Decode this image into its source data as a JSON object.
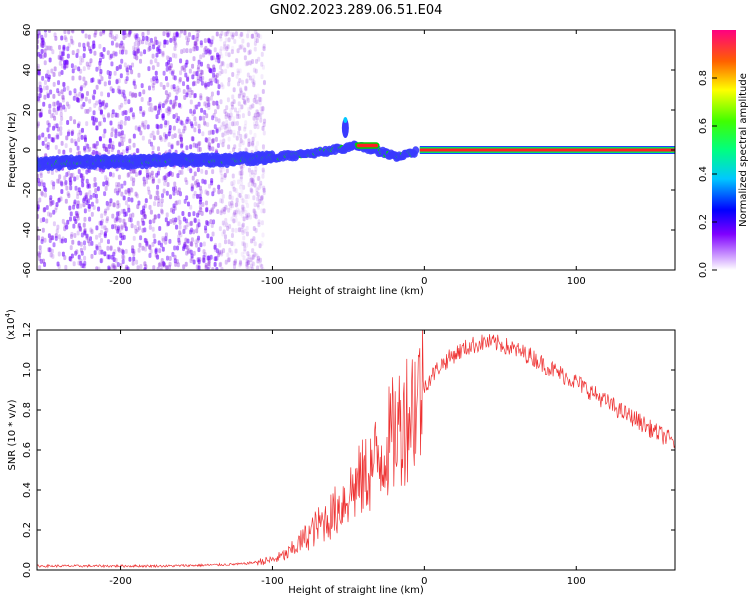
{
  "title": "GN02.2023.289.06.51.E04",
  "chart_data": [
    {
      "type": "heatmap",
      "xlabel": "Height of straight line (km)",
      "ylabel": "Frequency (Hz)",
      "xlim": [
        -255,
        165
      ],
      "ylim": [
        -60,
        60
      ],
      "xticks": [
        -200,
        -100,
        0,
        100
      ],
      "yticks": [
        -60,
        -40,
        -20,
        0,
        20,
        40,
        60
      ],
      "ridge": {
        "x": [
          -250,
          -230,
          -210,
          -190,
          -170,
          -150,
          -130,
          -110,
          -90,
          -75,
          -60,
          -52,
          -45,
          -38,
          -32,
          -25,
          -18,
          -12,
          -6,
          0,
          50,
          100,
          165
        ],
        "y": [
          -7,
          -6,
          -6,
          -6,
          -5,
          -5,
          -5,
          -4,
          -3,
          -2,
          0,
          1,
          2,
          1,
          0,
          -2,
          -3,
          -2,
          -1,
          0,
          0,
          0,
          0
        ]
      },
      "spike": {
        "x": -52,
        "y": 15
      },
      "colors": {
        "background_noise": "#8a2be2",
        "ridge_low": "#3a3aff",
        "ridge_mid": "#00e000",
        "ridge_high": "#ff2020"
      }
    },
    {
      "type": "line",
      "xlabel": "Height of straight line (km)",
      "ylabel": "SNR (10 * v/v)",
      "scale_note": "(x10",
      "scale_exp": "4",
      "xlim": [
        -255,
        165
      ],
      "ylim": [
        0,
        1.2
      ],
      "xticks": [
        -200,
        -100,
        0,
        100
      ],
      "yticks": [
        0.0,
        0.2,
        0.4,
        0.6,
        0.8,
        1.0,
        1.2
      ],
      "series": [
        {
          "color": "#ee3333",
          "x": [
            -255,
            -230,
            -200,
            -170,
            -140,
            -120,
            -100,
            -90,
            -80,
            -70,
            -60,
            -50,
            -40,
            -30,
            -20,
            -10,
            0,
            10,
            20,
            30,
            40,
            50,
            60,
            70,
            80,
            90,
            100,
            110,
            120,
            130,
            140,
            150,
            165
          ],
          "y": [
            0.02,
            0.02,
            0.02,
            0.02,
            0.025,
            0.03,
            0.05,
            0.08,
            0.15,
            0.22,
            0.28,
            0.38,
            0.46,
            0.56,
            0.68,
            0.8,
            0.92,
            1.02,
            1.08,
            1.12,
            1.14,
            1.13,
            1.1,
            1.07,
            1.02,
            0.98,
            0.94,
            0.89,
            0.84,
            0.79,
            0.75,
            0.7,
            0.64
          ]
        }
      ]
    }
  ],
  "colorbar": {
    "label": "Normalized spectral amplitude",
    "min": 0,
    "max": 1,
    "ticks": [
      "0.0",
      "0.2",
      "0.4",
      "0.6",
      "0.8"
    ]
  }
}
